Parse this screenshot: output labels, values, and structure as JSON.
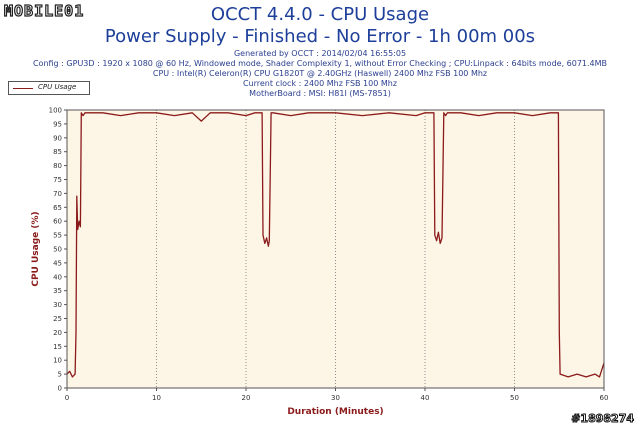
{
  "logo": {
    "text": "MOBILE01"
  },
  "header": {
    "title_line1": "OCCT 4.4.0 - CPU Usage",
    "title_line2": "Power Supply - Finished - No Error - 1h 00m 00s",
    "generated": "Generated by OCCT : 2014/02/04 16:55:05",
    "config": "Config : GPU3D : 1920 x 1080 @ 60 Hz, Windowed mode, Shader Complexity 1, without Error Checking ; CPU:Linpack : 64bits mode, 6071.4MB",
    "cpu": "CPU : Intel(R) Celeron(R) CPU G1820T @ 2.40GHz (Haswell) 2400 Mhz FSB 100 Mhz",
    "clock": "Current clock : 2400 Mhz FSB 100 Mhz",
    "motherboard": "MotherBoard : MSI: H81I (MS-7851)"
  },
  "watermark": "#1898274",
  "chart_data": {
    "type": "line",
    "xlabel": "Duration (Minutes)",
    "ylabel": "CPU Usage (%)",
    "xlim": [
      0,
      60
    ],
    "ylim": [
      0,
      100
    ],
    "x_ticks": [
      0,
      10,
      20,
      30,
      40,
      50,
      60
    ],
    "y_ticks": [
      0,
      5,
      10,
      15,
      20,
      25,
      30,
      35,
      40,
      45,
      50,
      55,
      60,
      65,
      70,
      75,
      80,
      85,
      90,
      95,
      100
    ],
    "grid": true,
    "legend_position": "top-left",
    "colors": {
      "line": "#8b1a1a",
      "plot_background": "#fdf5e6",
      "axis_label": "#8b1a1a"
    },
    "series": [
      {
        "name": "CPU Usage",
        "x": [
          0,
          0.3,
          0.6,
          0.9,
          1.0,
          1.1,
          1.2,
          1.35,
          1.5,
          1.6,
          1.8,
          2.0,
          4,
          6,
          8,
          10,
          12,
          14,
          15,
          16,
          18,
          20,
          21,
          21.8,
          21.9,
          22.1,
          22.3,
          22.5,
          22.6,
          22.8,
          23,
          25,
          27,
          30,
          33,
          36,
          39,
          40,
          40.5,
          41.0,
          41.1,
          41.3,
          41.5,
          41.7,
          41.9,
          42.1,
          42.3,
          42.5,
          44,
          46,
          48,
          50,
          52,
          54,
          54.9,
          55.0,
          55.1,
          56,
          57,
          58,
          59,
          59.5,
          59.7,
          60
        ],
        "values": [
          5,
          6,
          4,
          5,
          20,
          69,
          57,
          60,
          58,
          99,
          98,
          99,
          99,
          98,
          99,
          99,
          98,
          99,
          96,
          99,
          99,
          98,
          99,
          99,
          55,
          52,
          54,
          51,
          53,
          99,
          99,
          98,
          99,
          99,
          98,
          99,
          98,
          99,
          99,
          99,
          55,
          53,
          56,
          52,
          54,
          99,
          98,
          99,
          99,
          98,
          99,
          99,
          98,
          99,
          99,
          20,
          5,
          4,
          5,
          4,
          5,
          4,
          6,
          9
        ]
      }
    ]
  }
}
